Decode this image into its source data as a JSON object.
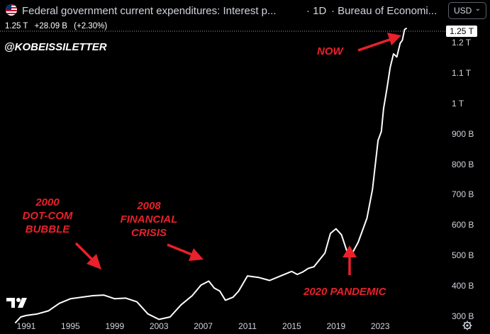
{
  "header": {
    "title": "Federal government current expenditures: Interest p...",
    "separator": "·",
    "interval": "· 1D",
    "source": "· Bureau of Economi...",
    "currency": "USD",
    "flag_icon": "us-flag-icon"
  },
  "ohlc": {
    "last": "1.25 T",
    "change": "+28.09 B",
    "change_pct": "(+2.30%)"
  },
  "watermark": "@KOBEISSILETTER",
  "price_tag": "1.25 T",
  "annotations": {
    "now": "NOW",
    "dotcom": "2000\nDOT-COM\nBUBBLE",
    "financial": "2008\nFINANCIAL\nCRISIS",
    "pandemic": "2020 PANDEMIC"
  },
  "colors": {
    "line": "#ffffff",
    "annotation": "#e8212a",
    "background": "#000000",
    "axis_text": "#d1d4dc"
  },
  "chart_data": {
    "type": "line",
    "title": "Federal government current expenditures: Interest p...",
    "xlabel": "",
    "ylabel": "",
    "ylim": [
      270,
      1260
    ],
    "x_tick_labels": [
      "1991",
      "1995",
      "1999",
      "2003",
      "2007",
      "2011",
      "2015",
      "2019",
      "2023"
    ],
    "y_tick_labels": [
      "1.2 T",
      "1.1 T",
      "1 T",
      "900 B",
      "800 B",
      "700 B",
      "600 B",
      "500 B",
      "400 B",
      "300 B"
    ],
    "y_tick_values": [
      1200,
      1100,
      1000,
      900,
      800,
      700,
      600,
      500,
      400,
      300
    ],
    "series": [
      {
        "unit": "billions USD",
        "points": [
          [
            1990.0,
            280
          ],
          [
            1990.5,
            300
          ],
          [
            1991.0,
            305
          ],
          [
            1992.0,
            310
          ],
          [
            1993.0,
            320
          ],
          [
            1994.0,
            345
          ],
          [
            1995.0,
            360
          ],
          [
            1996.0,
            365
          ],
          [
            1997.0,
            370
          ],
          [
            1998.0,
            372
          ],
          [
            1999.0,
            360
          ],
          [
            2000.0,
            362
          ],
          [
            2001.0,
            350
          ],
          [
            2002.0,
            310
          ],
          [
            2003.0,
            292
          ],
          [
            2004.0,
            300
          ],
          [
            2005.0,
            340
          ],
          [
            2006.0,
            370
          ],
          [
            2006.8,
            405
          ],
          [
            2007.5,
            418
          ],
          [
            2008.0,
            395
          ],
          [
            2008.5,
            385
          ],
          [
            2009.0,
            355
          ],
          [
            2009.7,
            365
          ],
          [
            2010.2,
            385
          ],
          [
            2011.0,
            435
          ],
          [
            2012.0,
            430
          ],
          [
            2013.0,
            420
          ],
          [
            2014.0,
            435
          ],
          [
            2015.0,
            450
          ],
          [
            2015.5,
            440
          ],
          [
            2016.0,
            448
          ],
          [
            2016.5,
            460
          ],
          [
            2017.0,
            465
          ],
          [
            2018.0,
            510
          ],
          [
            2018.5,
            575
          ],
          [
            2019.0,
            590
          ],
          [
            2019.5,
            570
          ],
          [
            2020.0,
            515
          ],
          [
            2020.4,
            505
          ],
          [
            2021.0,
            545
          ],
          [
            2021.8,
            625
          ],
          [
            2022.3,
            720
          ],
          [
            2022.8,
            880
          ],
          [
            2023.1,
            910
          ],
          [
            2023.3,
            985
          ],
          [
            2023.6,
            1050
          ],
          [
            2023.9,
            1120
          ],
          [
            2024.2,
            1165
          ],
          [
            2024.5,
            1155
          ],
          [
            2024.8,
            1200
          ],
          [
            2025.0,
            1210
          ],
          [
            2025.2,
            1245
          ],
          [
            2025.4,
            1250
          ]
        ]
      }
    ]
  }
}
